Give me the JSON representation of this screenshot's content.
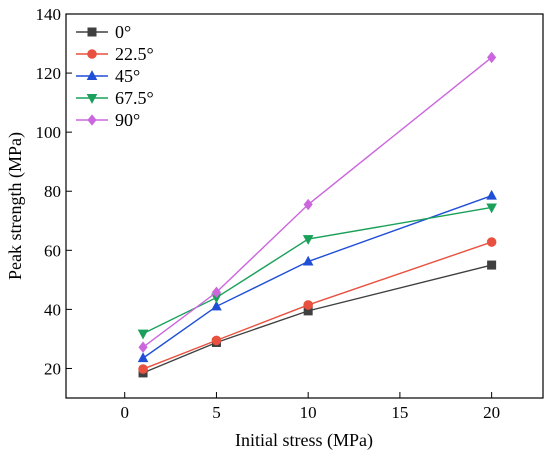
{
  "chart_data": {
    "type": "line",
    "title": "",
    "xlabel": "Initial stress (MPa)",
    "ylabel": "Peak strength (MPa)",
    "xlim": [
      -3.2,
      22.8
    ],
    "ylim": [
      10,
      140
    ],
    "xticks": [
      0,
      5,
      10,
      15,
      20
    ],
    "yticks": [
      20,
      40,
      60,
      80,
      100,
      120,
      140
    ],
    "x": [
      1,
      5,
      10,
      20
    ],
    "grid": false,
    "legend_position": "top-left",
    "series": [
      {
        "name": "0°",
        "color": "#404040",
        "marker": "square",
        "values": [
          18.5,
          28.8,
          39.5,
          55.0
        ]
      },
      {
        "name": "22.5°",
        "color": "#e8513f",
        "marker": "circle",
        "values": [
          19.8,
          29.5,
          41.5,
          62.8
        ]
      },
      {
        "name": "45°",
        "color": "#1f4fd6",
        "marker": "triangle-up",
        "values": [
          23.5,
          41.0,
          56.2,
          78.5
        ]
      },
      {
        "name": "67.5°",
        "color": "#1aa05a",
        "marker": "triangle-down",
        "values": [
          31.8,
          44.0,
          63.8,
          74.5
        ]
      },
      {
        "name": "90°",
        "color": "#cc66dd",
        "marker": "diamond",
        "values": [
          27.2,
          45.8,
          75.5,
          125.3
        ]
      }
    ]
  }
}
